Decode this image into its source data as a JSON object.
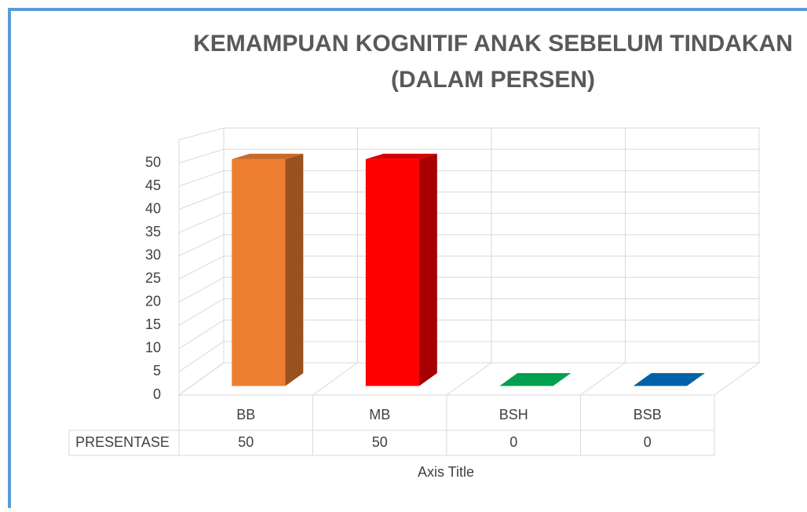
{
  "chart_data": {
    "type": "bar3d",
    "title": [
      "KEMAMPUAN KOGNITIF ANAK SEBELUM TINDAKAN",
      "(DALAM PERSEN)"
    ],
    "categories": [
      "BB",
      "MB",
      "BSH",
      "BSB"
    ],
    "series": [
      {
        "name": "PRESENTASE",
        "values": [
          50,
          50,
          0,
          0
        ]
      }
    ],
    "colors": [
      "#ed7d31",
      "#ff0000",
      "#00a050",
      "#0061a8"
    ],
    "ylim": [
      0,
      55
    ],
    "yticks": [
      0,
      5,
      10,
      15,
      20,
      25,
      30,
      35,
      40,
      45,
      50
    ],
    "x_axis_title": "Axis Title",
    "grid": true,
    "data_table": true
  }
}
